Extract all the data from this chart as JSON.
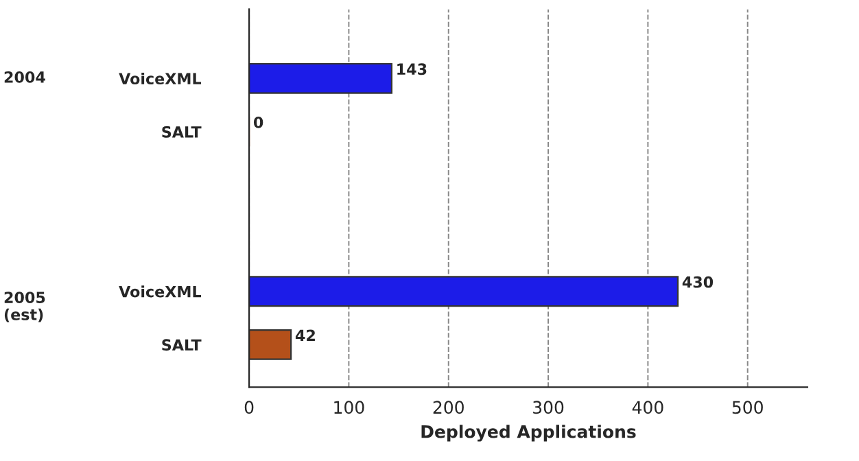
{
  "chart_data": {
    "type": "bar",
    "orientation": "horizontal",
    "xlabel": "Deployed Applications",
    "categories": [
      "VoiceXML",
      "SALT",
      null,
      null,
      "VoiceXML",
      "SALT"
    ],
    "values": [
      143,
      0,
      null,
      null,
      430,
      42
    ],
    "colors": [
      "#1c1ce8",
      "#b4501a",
      null,
      null,
      "#1c1ce8",
      "#b4501a"
    ],
    "xlim": [
      0,
      560
    ],
    "xticks": [
      0,
      100,
      200,
      300,
      400,
      500
    ],
    "data_labels": true,
    "grid": "x",
    "annotations": [
      "2004",
      "2005\n(est)"
    ]
  }
}
